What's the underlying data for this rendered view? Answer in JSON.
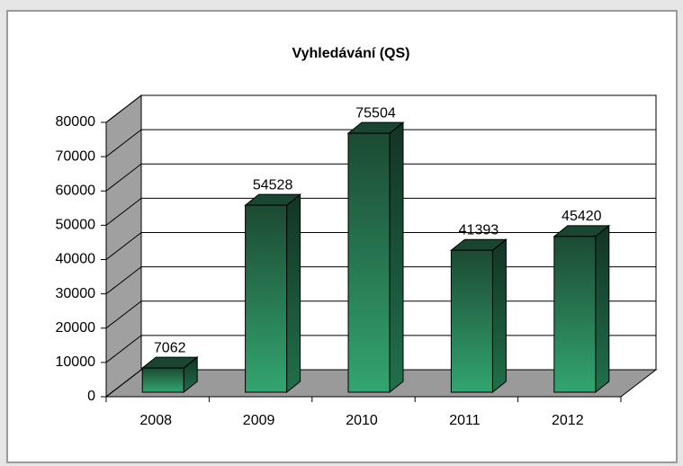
{
  "chart_data": {
    "type": "bar3d",
    "title": "Vyhledávání  (QS)",
    "categories": [
      "2008",
      "2009",
      "2010",
      "2011",
      "2012"
    ],
    "values": [
      7062,
      54528,
      75504,
      41393,
      45420
    ],
    "color": "#2e9e6a",
    "ylim": [
      0,
      80000
    ],
    "yticks": [
      0,
      10000,
      20000,
      30000,
      40000,
      50000,
      60000,
      70000,
      80000
    ],
    "grid": true
  }
}
